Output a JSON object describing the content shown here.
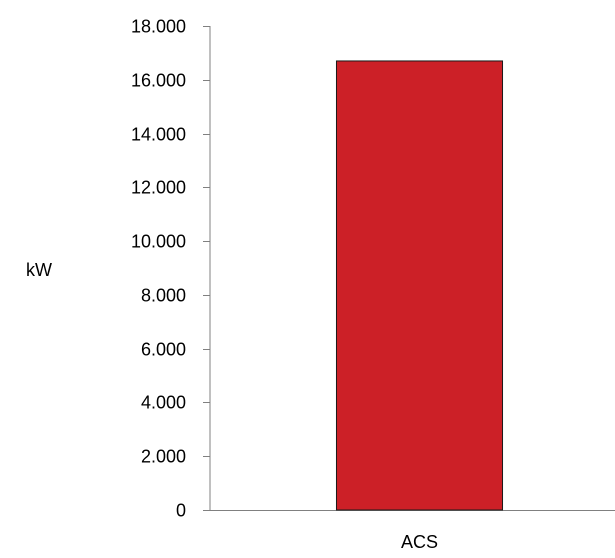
{
  "chart_data": {
    "type": "bar",
    "title": "",
    "xlabel": "",
    "ylabel": "kW",
    "categories": [
      "ACS"
    ],
    "values": [
      16700
    ],
    "ylim": [
      0,
      18000
    ],
    "yticks": [
      0,
      2000,
      4000,
      6000,
      8000,
      10000,
      12000,
      14000,
      16000,
      18000
    ],
    "ytick_labels": [
      "0",
      "2.000",
      "4.000",
      "6.000",
      "8.000",
      "10.000",
      "12.000",
      "14.000",
      "16.000",
      "18.000"
    ],
    "grid": false,
    "legend": "none",
    "bar_color": "#cc2027",
    "bar_edge_color": "#1a1a1a",
    "axis_color": "#808080"
  }
}
